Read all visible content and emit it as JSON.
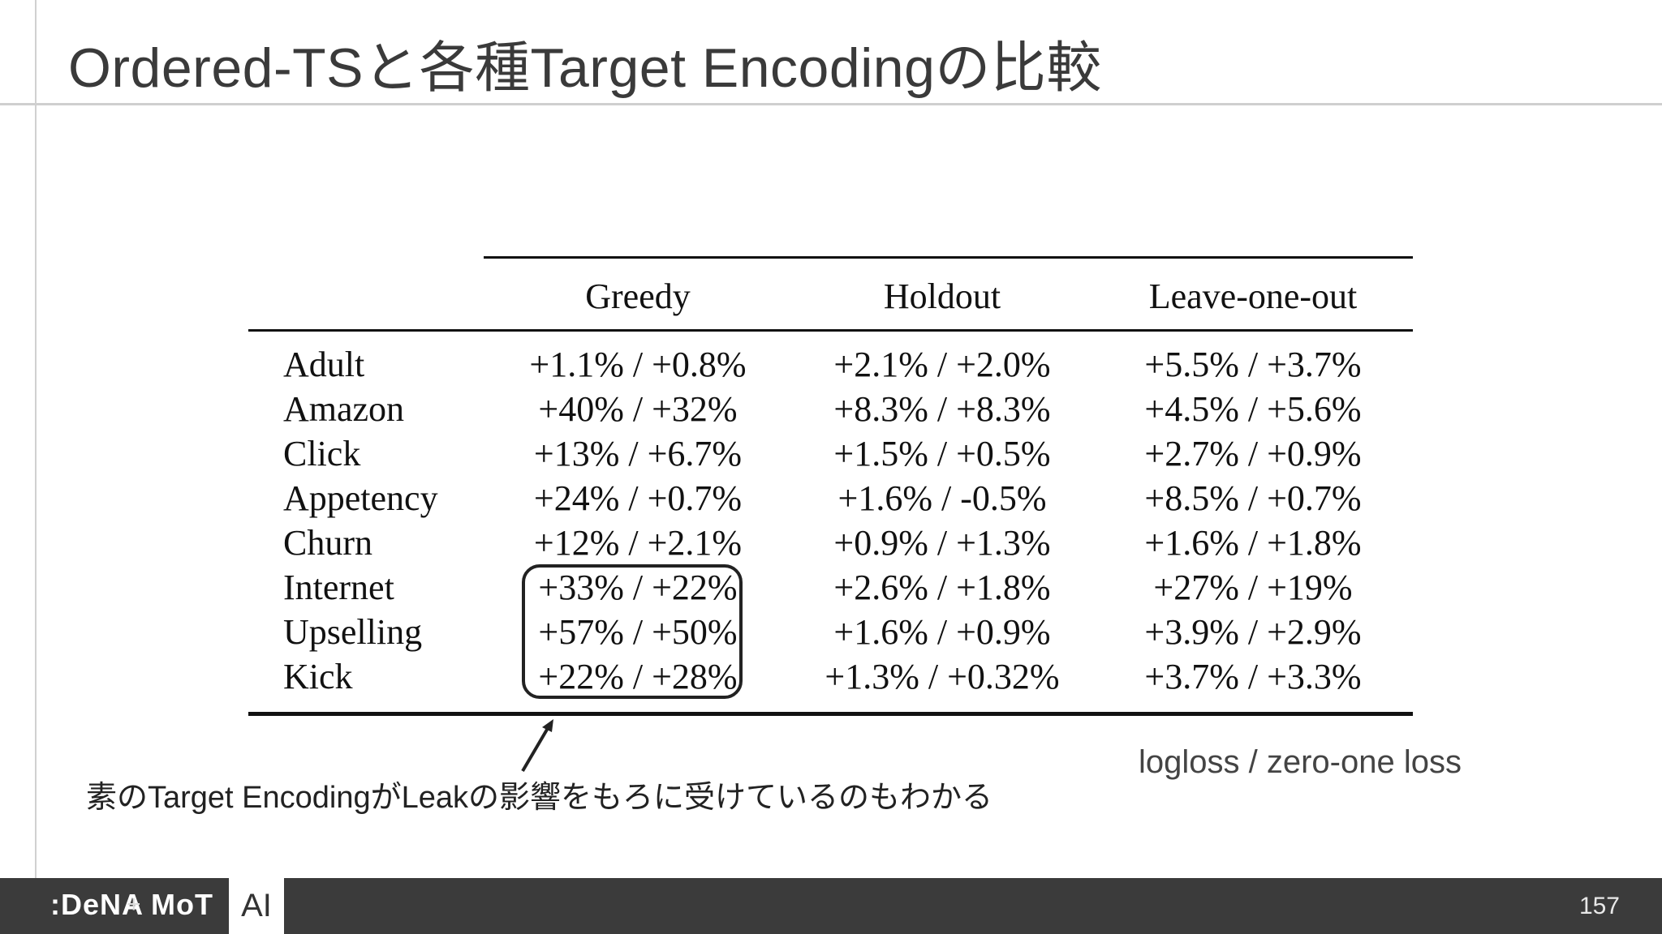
{
  "title": "Ordered-TSと各種Target Encodingの比較",
  "table": {
    "columns": [
      "Greedy",
      "Holdout",
      "Leave-one-out"
    ],
    "rows": [
      {
        "label": "Adult",
        "values": [
          "+1.1% / +0.8%",
          "+2.1% / +2.0%",
          "+5.5% / +3.7%"
        ]
      },
      {
        "label": "Amazon",
        "values": [
          "+40% / +32%",
          "+8.3% / +8.3%",
          "+4.5% / +5.6%"
        ]
      },
      {
        "label": "Click",
        "values": [
          "+13% / +6.7%",
          "+1.5% / +0.5%",
          "+2.7% / +0.9%"
        ]
      },
      {
        "label": "Appetency",
        "values": [
          "+24% / +0.7%",
          "+1.6% / -0.5%",
          "+8.5% / +0.7%"
        ]
      },
      {
        "label": "Churn",
        "values": [
          "+12% / +2.1%",
          "+0.9% / +1.3%",
          "+1.6% / +1.8%"
        ]
      },
      {
        "label": "Internet",
        "values": [
          "+33% / +22%",
          "+2.6% / +1.8%",
          "+27% / +19%"
        ]
      },
      {
        "label": "Upselling",
        "values": [
          "+57% / +50%",
          "+1.6% / +0.9%",
          "+3.9% / +2.9%"
        ]
      },
      {
        "label": "Kick",
        "values": [
          "+22% / +28%",
          "+1.3% / +0.32%",
          "+3.7% / +3.3%"
        ]
      }
    ]
  },
  "notes": {
    "metrics": "logloss / zero-one loss",
    "leak": "素のTarget EncodingがLeakの影響をもろに受けているのもわかる"
  },
  "footer": {
    "logo_dena": ":DeNA",
    "logo_plus": "+",
    "logo_mot": "MoT",
    "logo_ai": "AI",
    "page_number": "157"
  }
}
